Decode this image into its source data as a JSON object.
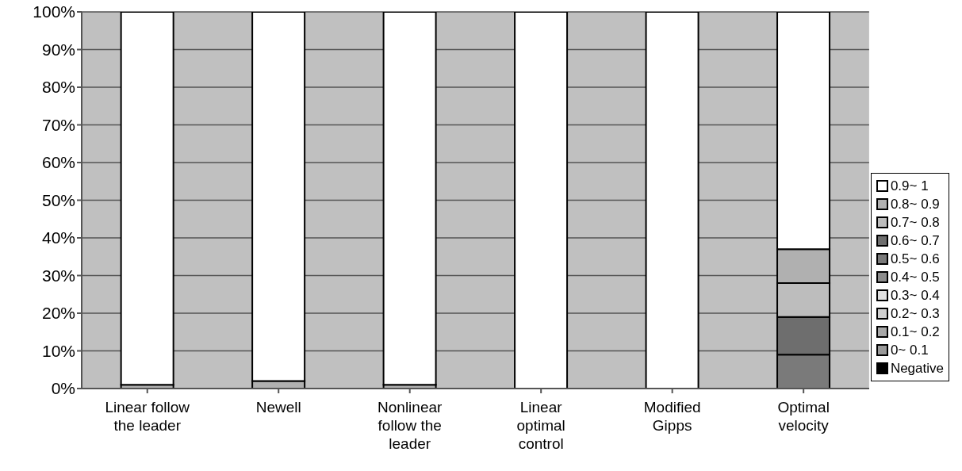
{
  "chart_data": {
    "type": "bar",
    "stacked": true,
    "categories": [
      "Linear follow the leader",
      "Newell",
      "Nonlinear follow the leader",
      "Linear optimal control",
      "Modified Gipps",
      "Optimal velocity"
    ],
    "series": [
      {
        "name": "Negative",
        "color": "#000000",
        "values": [
          0,
          0,
          0,
          0,
          0,
          0
        ]
      },
      {
        "name": "0~ 0.1",
        "color": "#9a9a9a",
        "values": [
          0,
          0,
          0,
          0,
          0,
          0
        ]
      },
      {
        "name": "0.1~ 0.2",
        "color": "#a8a8a8",
        "values": [
          0,
          0,
          0,
          0,
          0,
          0
        ]
      },
      {
        "name": "0.2~ 0.3",
        "color": "#d0d0d0",
        "values": [
          0,
          0,
          0,
          0,
          0,
          0
        ]
      },
      {
        "name": "0.3~ 0.4",
        "color": "#e0e0e0",
        "values": [
          0,
          0,
          0,
          0,
          0,
          0
        ]
      },
      {
        "name": "0.4~ 0.5",
        "color": "#8c8c8c",
        "values": [
          0,
          0,
          0,
          0,
          0,
          0
        ]
      },
      {
        "name": "0.5~ 0.6",
        "color": "#7a7a7a",
        "values": [
          0,
          0,
          0,
          0,
          0,
          9
        ]
      },
      {
        "name": "0.6~ 0.7",
        "color": "#6e6e6e",
        "values": [
          0,
          0,
          0,
          0,
          0,
          10
        ]
      },
      {
        "name": "0.7~ 0.8",
        "color": "#bdbdbd",
        "values": [
          0,
          0,
          0,
          0,
          0,
          9
        ]
      },
      {
        "name": "0.8~ 0.9",
        "color": "#b0b0b0",
        "values": [
          1,
          2,
          1,
          0,
          0,
          9
        ]
      },
      {
        "name": "0.9~ 1",
        "color": "#ffffff",
        "values": [
          99,
          98,
          99,
          100,
          100,
          63
        ]
      }
    ],
    "ylim": [
      0,
      100
    ],
    "yticks": [
      {
        "value": 0,
        "label": "0%"
      },
      {
        "value": 10,
        "label": "10%"
      },
      {
        "value": 20,
        "label": "20%"
      },
      {
        "value": 30,
        "label": "30%"
      },
      {
        "value": 40,
        "label": "40%"
      },
      {
        "value": 50,
        "label": "50%"
      },
      {
        "value": 60,
        "label": "60%"
      },
      {
        "value": 70,
        "label": "70%"
      },
      {
        "value": 80,
        "label": "80%"
      },
      {
        "value": 90,
        "label": "90%"
      },
      {
        "value": 100,
        "label": "100%"
      }
    ],
    "grid": "y",
    "legend": "right"
  }
}
